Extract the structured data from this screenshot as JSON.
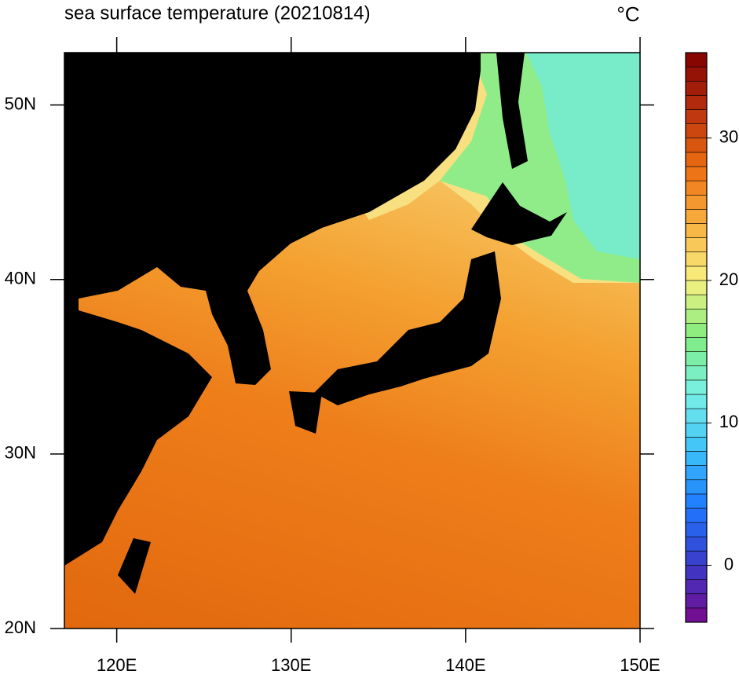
{
  "chart_data": {
    "type": "contour-map",
    "title": "sea surface temperature (20210814)",
    "unit": "°C",
    "xlim": [
      117,
      150
    ],
    "ylim": [
      20,
      53
    ],
    "xticks": [
      {
        "value": 120,
        "label": "120E"
      },
      {
        "value": 130,
        "label": "130E"
      },
      {
        "value": 140,
        "label": "140E"
      },
      {
        "value": 150,
        "label": "150E"
      }
    ],
    "yticks": [
      {
        "value": 20,
        "label": "20N"
      },
      {
        "value": 30,
        "label": "30N"
      },
      {
        "value": 40,
        "label": "40N"
      },
      {
        "value": 50,
        "label": "50N"
      }
    ],
    "colorbar": {
      "lim": [
        -4,
        36
      ],
      "ticks": [
        0,
        10,
        20,
        30
      ],
      "step": 1,
      "colors": [
        "#7a0a8c",
        "#3a3ac8",
        "#1e78ff",
        "#3cc0f8",
        "#78f0e8",
        "#80ec80",
        "#f8f080",
        "#f8b040",
        "#ec6c10",
        "#b83010",
        "#800000"
      ]
    }
  }
}
